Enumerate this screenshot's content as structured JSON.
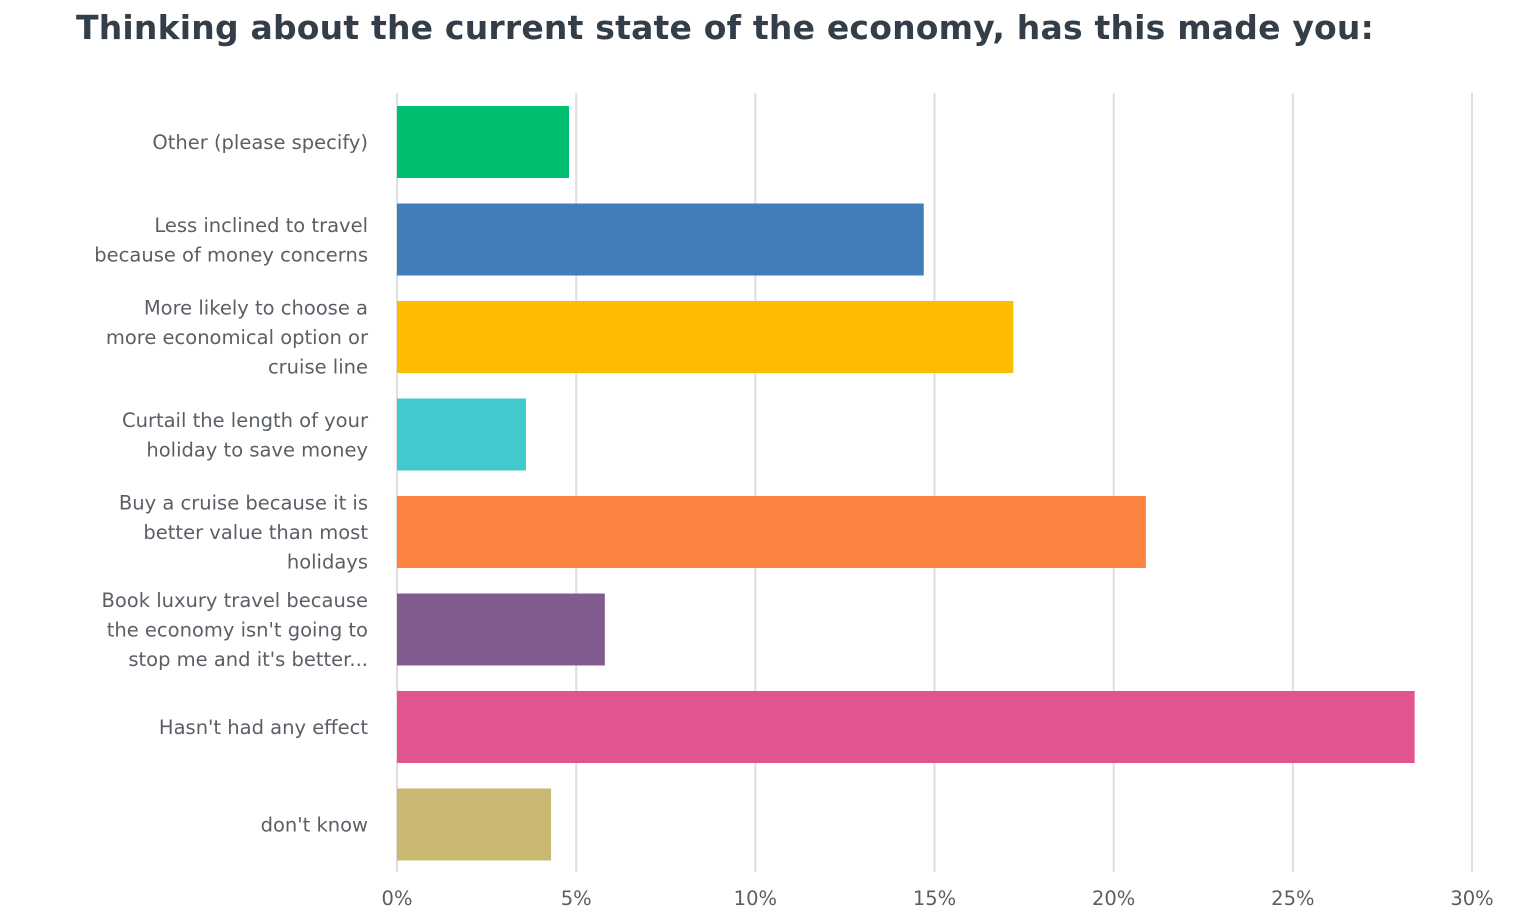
{
  "chart_data": {
    "type": "bar",
    "orientation": "horizontal",
    "title": "Thinking about the current state of the economy, has this made you:",
    "xlabel": "",
    "ylabel": "",
    "categories": [
      [
        "Other (please specify)"
      ],
      [
        "Less inclined to travel",
        "because of money concerns"
      ],
      [
        "More likely to choose a",
        "more economical option or",
        "cruise line"
      ],
      [
        "Curtail the length of your",
        "holiday to save money"
      ],
      [
        "Buy a cruise because it is",
        "better value than most",
        "holidays"
      ],
      [
        "Book luxury travel because",
        "the economy isn't going to",
        "stop me and it's better..."
      ],
      [
        "Hasn't had any effect"
      ],
      [
        "don't know"
      ]
    ],
    "values": [
      4.8,
      14.7,
      17.2,
      3.6,
      20.9,
      5.8,
      28.4,
      4.3
    ],
    "value_unit": "%",
    "colors": [
      "#00bf6f",
      "#407dba",
      "#fdbc00",
      "#42c9cd",
      "#fd8340",
      "#835c8f",
      "#e0548f",
      "#c9b872"
    ],
    "xlim": [
      0,
      30
    ],
    "ticks": [
      "0%",
      "5%",
      "10%",
      "15%",
      "20%",
      "25%",
      "30%"
    ],
    "tick_values": [
      0,
      5,
      10,
      15,
      20,
      25,
      30
    ],
    "grid": true,
    "legend": "none"
  }
}
